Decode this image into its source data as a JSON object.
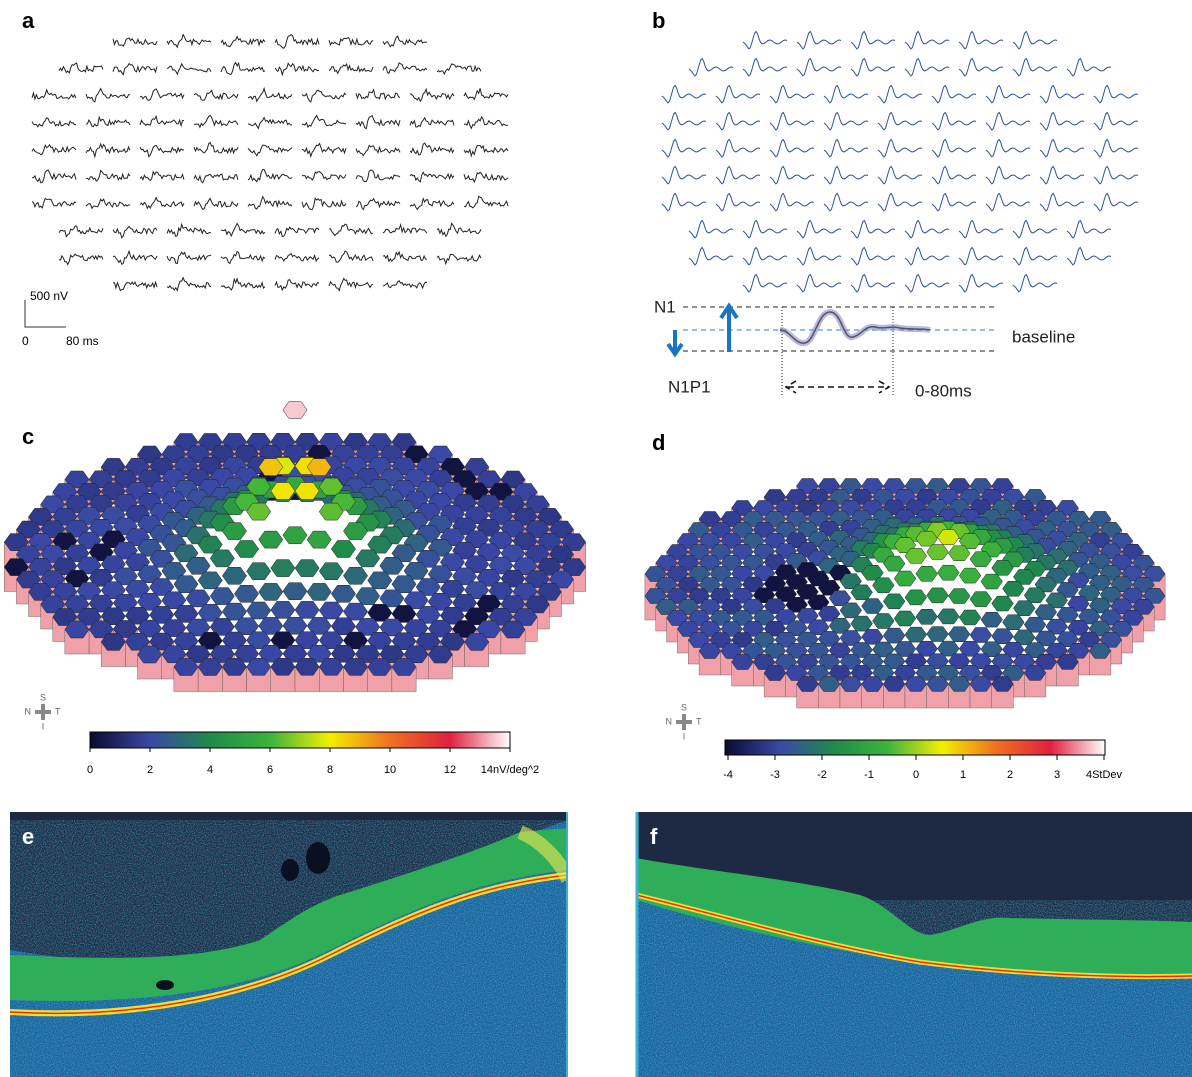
{
  "panels": {
    "a": {
      "label": "a",
      "scale": {
        "amplitude": "500 nV",
        "origin": "0",
        "time": "80 ms"
      }
    },
    "b": {
      "label": "b",
      "annotations": {
        "n1": "N1",
        "n1p1": "N1P1",
        "baseline": "baseline",
        "window": "0-80ms"
      }
    },
    "c": {
      "label": "c",
      "orientation": {
        "s": "S",
        "n": "N",
        "t": "T",
        "i": "I"
      },
      "colorbar": {
        "labels": [
          "0",
          "2",
          "4",
          "6",
          "8",
          "10",
          "12",
          "14nV/deg^2"
        ]
      }
    },
    "d": {
      "label": "d",
      "orientation": {
        "s": "S",
        "n": "N",
        "t": "T",
        "i": "I"
      },
      "colorbar": {
        "labels": [
          "-4",
          "-3",
          "-2",
          "-1",
          "0",
          "1",
          "2",
          "3",
          "4StDev"
        ]
      }
    },
    "e": {
      "label": "e"
    },
    "f": {
      "label": "f"
    }
  }
}
